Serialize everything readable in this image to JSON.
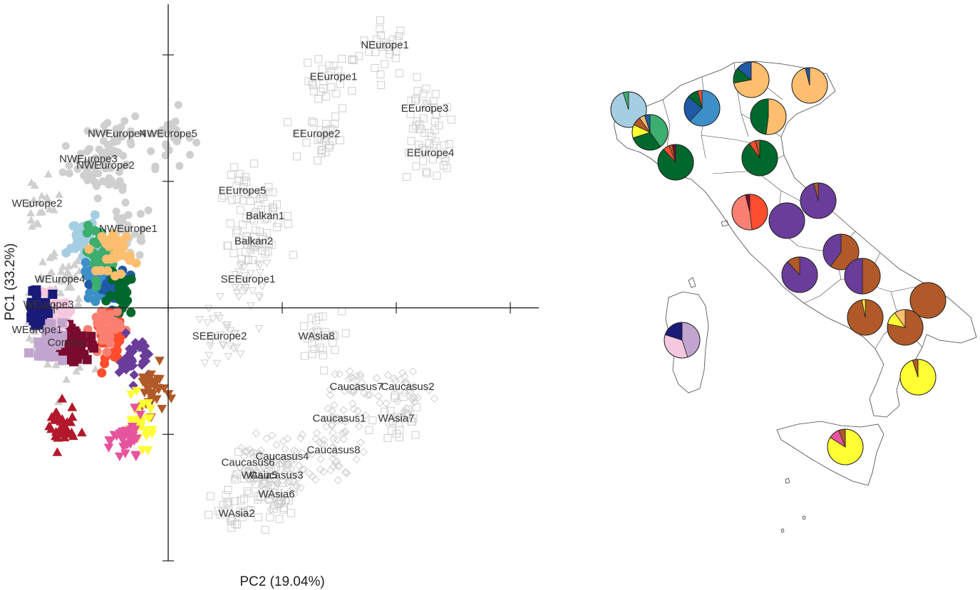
{
  "chart_data": [
    {
      "type": "scatter",
      "title": "",
      "xlabel": "PC2 (19.04%)",
      "ylabel": "PC1 (33.2%)",
      "xlim": [
        -2.5,
        6.5
      ],
      "ylim": [
        -4.0,
        4.8
      ],
      "grid": false,
      "reference_labels": [
        {
          "name": "NEurope1",
          "x": 3.8,
          "y": 4.1
        },
        {
          "name": "EEurope1",
          "x": 2.9,
          "y": 3.6
        },
        {
          "name": "EEurope3",
          "x": 4.5,
          "y": 3.1
        },
        {
          "name": "EEurope4",
          "x": 4.6,
          "y": 2.4
        },
        {
          "name": "EEurope2",
          "x": 2.6,
          "y": 2.7
        },
        {
          "name": "NWEurope4",
          "x": -0.9,
          "y": 2.7
        },
        {
          "name": "NWEurope5",
          "x": 0.0,
          "y": 2.7
        },
        {
          "name": "NWEurope3",
          "x": -1.4,
          "y": 2.3
        },
        {
          "name": "NWEurope2",
          "x": -1.1,
          "y": 2.2
        },
        {
          "name": "WEurope2",
          "x": -2.3,
          "y": 1.6
        },
        {
          "name": "EEurope5",
          "x": 1.3,
          "y": 1.8
        },
        {
          "name": "Balkan1",
          "x": 1.7,
          "y": 1.4
        },
        {
          "name": "Balkan2",
          "x": 1.5,
          "y": 1.0
        },
        {
          "name": "NWEurope1",
          "x": -0.7,
          "y": 1.2
        },
        {
          "name": "WEurope4",
          "x": -1.9,
          "y": 0.4
        },
        {
          "name": "SEEurope1",
          "x": 1.4,
          "y": 0.4
        },
        {
          "name": "WEurope3",
          "x": -2.1,
          "y": 0.0
        },
        {
          "name": "WEurope1",
          "x": -2.3,
          "y": -0.4
        },
        {
          "name": "Corsica",
          "x": -1.8,
          "y": -0.6
        },
        {
          "name": "SEEurope2",
          "x": 0.9,
          "y": -0.5
        },
        {
          "name": "WAsia8",
          "x": 2.6,
          "y": -0.5
        },
        {
          "name": "Caucasus7",
          "x": 3.3,
          "y": -1.3
        },
        {
          "name": "Caucasus2",
          "x": 4.2,
          "y": -1.3
        },
        {
          "name": "Caucasus1",
          "x": 3.0,
          "y": -1.8
        },
        {
          "name": "WAsia7",
          "x": 4.0,
          "y": -1.8
        },
        {
          "name": "Caucasus8",
          "x": 2.9,
          "y": -2.3
        },
        {
          "name": "Caucasus6",
          "x": 1.4,
          "y": -2.5
        },
        {
          "name": "Caucasus4",
          "x": 2.0,
          "y": -2.4
        },
        {
          "name": "WAsia5",
          "x": 1.6,
          "y": -2.7
        },
        {
          "name": "Caucasus3",
          "x": 1.9,
          "y": -2.7
        },
        {
          "name": "WAsia6",
          "x": 1.9,
          "y": -3.0
        },
        {
          "name": "WAsia2",
          "x": 1.2,
          "y": -3.3
        }
      ],
      "italian_clusters": [
        {
          "color": "#a6cee3",
          "x": -1.5,
          "y": 1.1
        },
        {
          "color": "#3d8fc8",
          "x": -1.2,
          "y": 0.5
        },
        {
          "color": "#1f5aa6",
          "x": -1.0,
          "y": 0.3
        },
        {
          "color": "#3cae6e",
          "x": -1.2,
          "y": 0.9
        },
        {
          "color": "#00682c",
          "x": -0.8,
          "y": 0.2
        },
        {
          "color": "#fdbf6f",
          "x": -0.9,
          "y": 0.9
        },
        {
          "color": "#ff4d2e",
          "x": -1.0,
          "y": -0.5
        },
        {
          "color": "#fb8072",
          "x": -1.1,
          "y": -0.3
        },
        {
          "color": "#6a3d9a",
          "x": -0.6,
          "y": -0.8
        },
        {
          "color": "#b15928",
          "x": -0.3,
          "y": -1.3
        },
        {
          "color": "#ffff33",
          "x": -0.5,
          "y": -1.8
        },
        {
          "color": "#e7549e",
          "x": -0.7,
          "y": -2.1
        },
        {
          "color": "#b2182b",
          "x": -1.9,
          "y": -1.9
        },
        {
          "color": "#7a0b2f",
          "x": -1.6,
          "y": -0.6
        },
        {
          "color": "#f6c8e0",
          "x": -2.0,
          "y": -0.2
        },
        {
          "color": "#c2a5cf",
          "x": -2.1,
          "y": -0.5
        },
        {
          "color": "#1a1a78",
          "x": -2.3,
          "y": 0.0
        }
      ]
    },
    {
      "type": "pie",
      "title": "",
      "xlabel": "",
      "ylabel": "",
      "pies": [
        {
          "region": "r1",
          "slices": [
            {
              "color": "#a6cee3",
              "value": 95
            },
            {
              "color": "#3cae6e",
              "value": 5
            }
          ]
        },
        {
          "region": "r2",
          "slices": [
            {
              "color": "#3d8fc8",
              "value": 62
            },
            {
              "color": "#1f5aa6",
              "value": 24
            },
            {
              "color": "#00682c",
              "value": 10
            },
            {
              "color": "#ff4d2e",
              "value": 4
            }
          ]
        },
        {
          "region": "r3",
          "slices": [
            {
              "color": "#fdbf6f",
              "value": 72
            },
            {
              "color": "#00682c",
              "value": 14
            },
            {
              "color": "#1f5aa6",
              "value": 14
            }
          ]
        },
        {
          "region": "r4",
          "slices": [
            {
              "color": "#fdbf6f",
              "value": 96
            },
            {
              "color": "#1f5aa6",
              "value": 4
            }
          ]
        },
        {
          "region": "r5",
          "slices": [
            {
              "color": "#3cae6e",
              "value": 40
            },
            {
              "color": "#00682c",
              "value": 30
            },
            {
              "color": "#ffff33",
              "value": 12
            },
            {
              "color": "#b15928",
              "value": 8
            },
            {
              "color": "#fdbf6f",
              "value": 5
            },
            {
              "color": "#1f5aa6",
              "value": 5
            }
          ]
        },
        {
          "region": "r6",
          "slices": [
            {
              "color": "#fdbf6f",
              "value": 52
            },
            {
              "color": "#00682c",
              "value": 48
            }
          ]
        },
        {
          "region": "r7",
          "slices": [
            {
              "color": "#00682c",
              "value": 88
            },
            {
              "color": "#ff4d2e",
              "value": 6
            },
            {
              "color": "#b15928",
              "value": 3
            },
            {
              "color": "#7a0b2f",
              "value": 3
            }
          ]
        },
        {
          "region": "r8",
          "slices": [
            {
              "color": "#00682c",
              "value": 90
            },
            {
              "color": "#ff4d2e",
              "value": 6
            },
            {
              "color": "#b15928",
              "value": 4
            }
          ]
        },
        {
          "region": "r9",
          "slices": [
            {
              "color": "#ff4d2e",
              "value": 48
            },
            {
              "color": "#fb8072",
              "value": 48
            },
            {
              "color": "#7a0b2f",
              "value": 4
            }
          ]
        },
        {
          "region": "r10",
          "slices": [
            {
              "color": "#6a3d9a",
              "value": 96
            },
            {
              "color": "#b15928",
              "value": 4
            }
          ]
        },
        {
          "region": "r11",
          "slices": [
            {
              "color": "#6a3d9a",
              "value": 100
            }
          ]
        },
        {
          "region": "r12",
          "slices": [
            {
              "color": "#b15928",
              "value": 60
            },
            {
              "color": "#6a3d9a",
              "value": 40
            }
          ]
        },
        {
          "region": "r13",
          "slices": [
            {
              "color": "#6a3d9a",
              "value": 88
            },
            {
              "color": "#b15928",
              "value": 12
            }
          ]
        },
        {
          "region": "r14",
          "slices": [
            {
              "color": "#b15928",
              "value": 50
            },
            {
              "color": "#6a3d9a",
              "value": 50
            }
          ]
        },
        {
          "region": "r15",
          "slices": [
            {
              "color": "#b15928",
              "value": 100
            }
          ]
        },
        {
          "region": "r16",
          "slices": [
            {
              "color": "#b15928",
              "value": 97
            },
            {
              "color": "#ffff33",
              "value": 3
            }
          ]
        },
        {
          "region": "r17",
          "slices": [
            {
              "color": "#b15928",
              "value": 78
            },
            {
              "color": "#ffff33",
              "value": 12
            },
            {
              "color": "#fdbf6f",
              "value": 10
            }
          ]
        },
        {
          "region": "r18",
          "slices": [
            {
              "color": "#c2a5cf",
              "value": 45
            },
            {
              "color": "#f6c8e0",
              "value": 35
            },
            {
              "color": "#1a1a78",
              "value": 20
            }
          ]
        },
        {
          "region": "r19",
          "slices": [
            {
              "color": "#ffff33",
              "value": 95
            },
            {
              "color": "#b15928",
              "value": 5
            }
          ]
        },
        {
          "region": "r20",
          "slices": [
            {
              "color": "#ffff33",
              "value": 84
            },
            {
              "color": "#e7549e",
              "value": 10
            },
            {
              "color": "#b15928",
              "value": 6
            }
          ]
        }
      ]
    }
  ]
}
